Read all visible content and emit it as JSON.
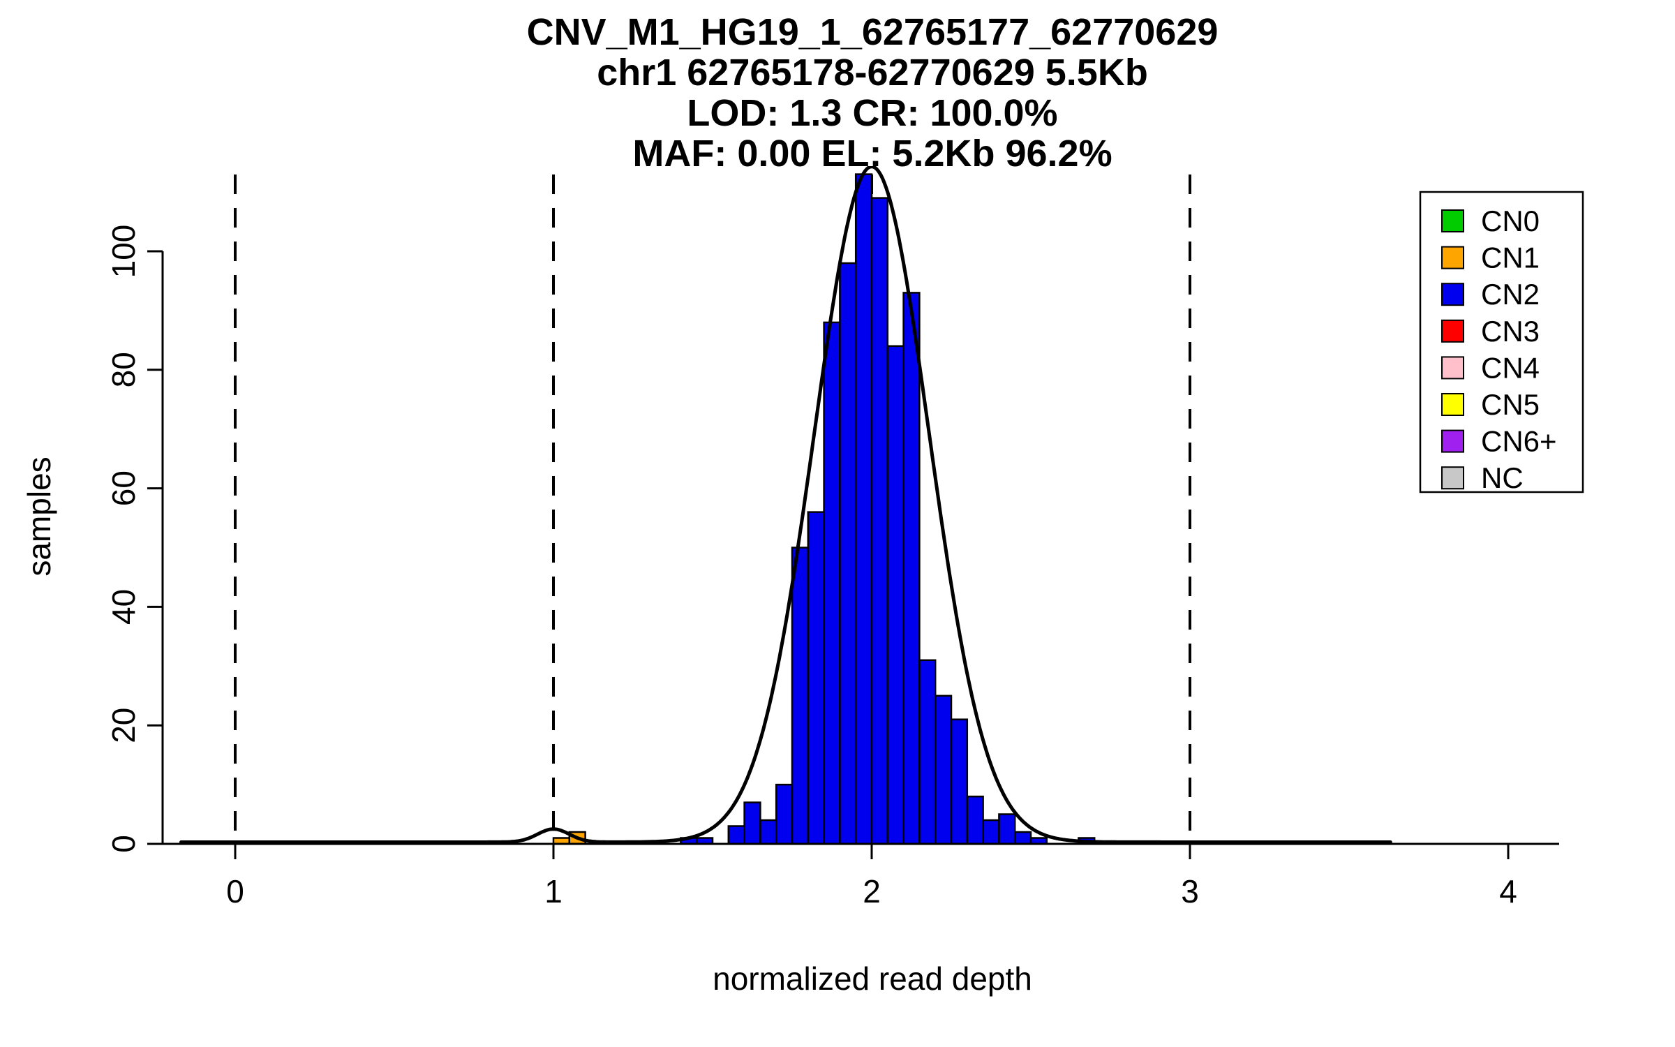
{
  "chart_data": {
    "type": "histogram",
    "title_lines": [
      "CNV_M1_HG19_1_62765177_62770629",
      "chr1 62765178-62770629 5.5Kb",
      "LOD: 1.3 CR: 100.0%",
      "MAF: 0.00 EL: 5.2Kb 96.2%"
    ],
    "xlabel": "normalized read depth",
    "ylabel": "samples",
    "x_ticks": [
      0,
      1,
      2,
      3,
      4
    ],
    "y_ticks": [
      0,
      20,
      40,
      60,
      80,
      100
    ],
    "xlim": [
      -0.23,
      4.15
    ],
    "ylim": [
      0,
      113
    ],
    "grid": false,
    "legend_position": "top-right",
    "bin_width": 0.05,
    "dashed_vlines_x": [
      0,
      1,
      2,
      3
    ],
    "series": [
      {
        "name": "CN1",
        "color": "#FFA500",
        "bins": [
          {
            "x": 1.0,
            "count": 1
          },
          {
            "x": 1.05,
            "count": 2
          }
        ]
      },
      {
        "name": "CN2",
        "color": "#0000EE",
        "bins": [
          {
            "x": 1.4,
            "count": 1
          },
          {
            "x": 1.45,
            "count": 1
          },
          {
            "x": 1.55,
            "count": 3
          },
          {
            "x": 1.6,
            "count": 7
          },
          {
            "x": 1.65,
            "count": 4
          },
          {
            "x": 1.7,
            "count": 10
          },
          {
            "x": 1.75,
            "count": 50
          },
          {
            "x": 1.8,
            "count": 56
          },
          {
            "x": 1.85,
            "count": 88
          },
          {
            "x": 1.9,
            "count": 98
          },
          {
            "x": 1.95,
            "count": 113
          },
          {
            "x": 2.0,
            "count": 109
          },
          {
            "x": 2.05,
            "count": 84
          },
          {
            "x": 2.1,
            "count": 93
          },
          {
            "x": 2.15,
            "count": 31
          },
          {
            "x": 2.2,
            "count": 25
          },
          {
            "x": 2.25,
            "count": 21
          },
          {
            "x": 2.3,
            "count": 8
          },
          {
            "x": 2.35,
            "count": 4
          },
          {
            "x": 2.4,
            "count": 5
          },
          {
            "x": 2.45,
            "count": 2
          },
          {
            "x": 2.5,
            "count": 1
          },
          {
            "x": 2.65,
            "count": 1
          }
        ]
      }
    ],
    "density_curve": {
      "color": "#000000",
      "baseline": 0.3,
      "x_range": [
        -0.17,
        3.63
      ],
      "components": [
        {
          "mean": 2.0,
          "sd": 0.18,
          "peak": 114
        },
        {
          "mean": 1.0,
          "sd": 0.05,
          "peak": 2.2
        }
      ]
    },
    "legend": [
      {
        "label": "CN0",
        "color": "#00CC00"
      },
      {
        "label": "CN1",
        "color": "#FFA500"
      },
      {
        "label": "CN2",
        "color": "#0000EE"
      },
      {
        "label": "CN3",
        "color": "#FF0000"
      },
      {
        "label": "CN4",
        "color": "#FFC0CB"
      },
      {
        "label": "CN5",
        "color": "#FFFF00"
      },
      {
        "label": "CN6+",
        "color": "#A020F0"
      },
      {
        "label": "NC",
        "color": "#C8C8C8"
      }
    ]
  }
}
